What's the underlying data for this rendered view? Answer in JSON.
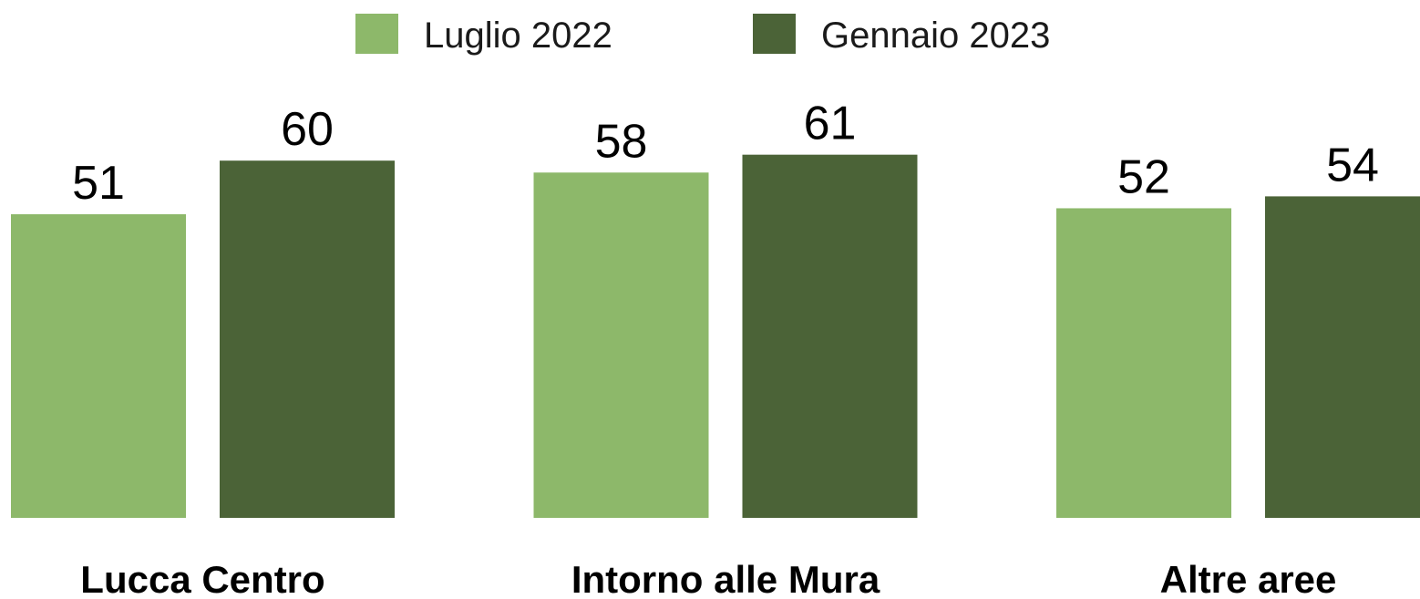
{
  "chart_data": {
    "type": "bar",
    "categories": [
      "Lucca Centro",
      "Intorno alle Mura",
      "Altre aree"
    ],
    "series": [
      {
        "name": "Luglio 2022",
        "color": "#8db86a",
        "values": [
          51,
          58,
          52
        ]
      },
      {
        "name": "Gennaio 2023",
        "color": "#4b6337",
        "values": [
          60,
          61,
          54
        ]
      }
    ],
    "legend": "top"
  }
}
